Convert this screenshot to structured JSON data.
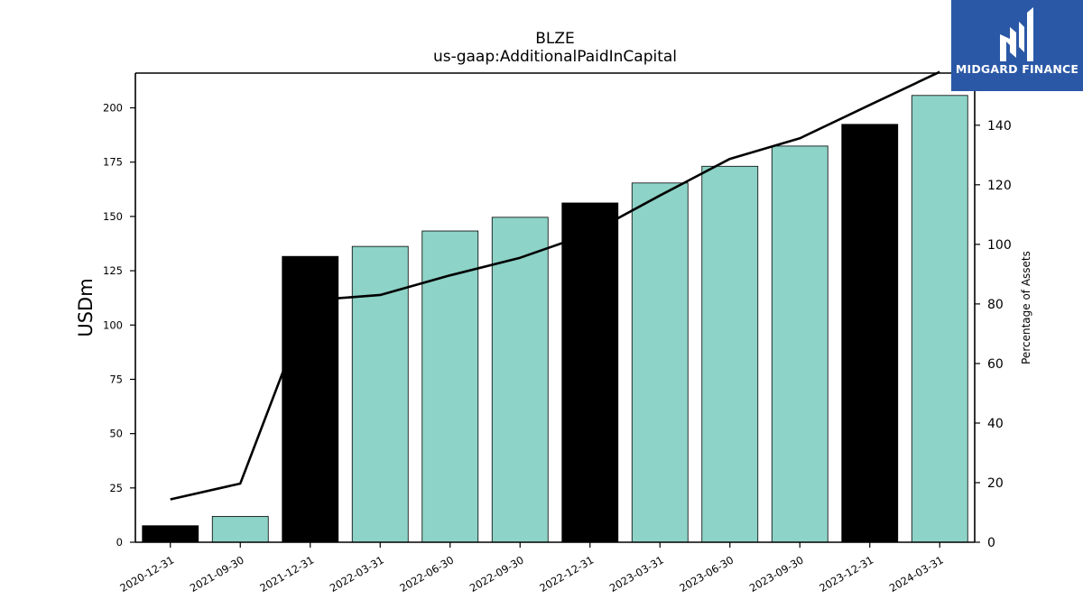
{
  "logo": {
    "text": "MIDGARD FINANCE"
  },
  "chart_data": {
    "type": "bar",
    "title": "BLZE",
    "subtitle": "us-gaap:AdditionalPaidInCapital",
    "ylabel": "USDm",
    "y2label": "Percentage of Assets",
    "categories": [
      "2020-12-31",
      "2021-09-30",
      "2021-12-31",
      "2022-03-31",
      "2022-06-30",
      "2022-09-30",
      "2022-12-31",
      "2023-03-31",
      "2023-06-30",
      "2023-09-30",
      "2023-12-31",
      "2024-03-31"
    ],
    "values": [
      7.6,
      11.9,
      131.6,
      136.2,
      143.3,
      149.6,
      156.2,
      165.4,
      173.1,
      182.4,
      192.4,
      205.7
    ],
    "bar_colors": [
      "#000000",
      "#8dd3c7",
      "#000000",
      "#8dd3c7",
      "#8dd3c7",
      "#8dd3c7",
      "#000000",
      "#8dd3c7",
      "#8dd3c7",
      "#8dd3c7",
      "#000000",
      "#8dd3c7"
    ],
    "line": {
      "axis": "right",
      "values": [
        14.4,
        19.7,
        81.2,
        83.0,
        89.6,
        95.5,
        103.7,
        116.4,
        128.7,
        135.6,
        146.8,
        157.9
      ],
      "color": "#000000"
    },
    "ylim": [
      0,
      216
    ],
    "y2lim": [
      0,
      157.5
    ],
    "yticks": [
      0,
      25,
      50,
      75,
      100,
      125,
      150,
      175,
      200
    ],
    "y2ticks": [
      0,
      20,
      40,
      60,
      80,
      100,
      120,
      140
    ],
    "grid": false
  }
}
